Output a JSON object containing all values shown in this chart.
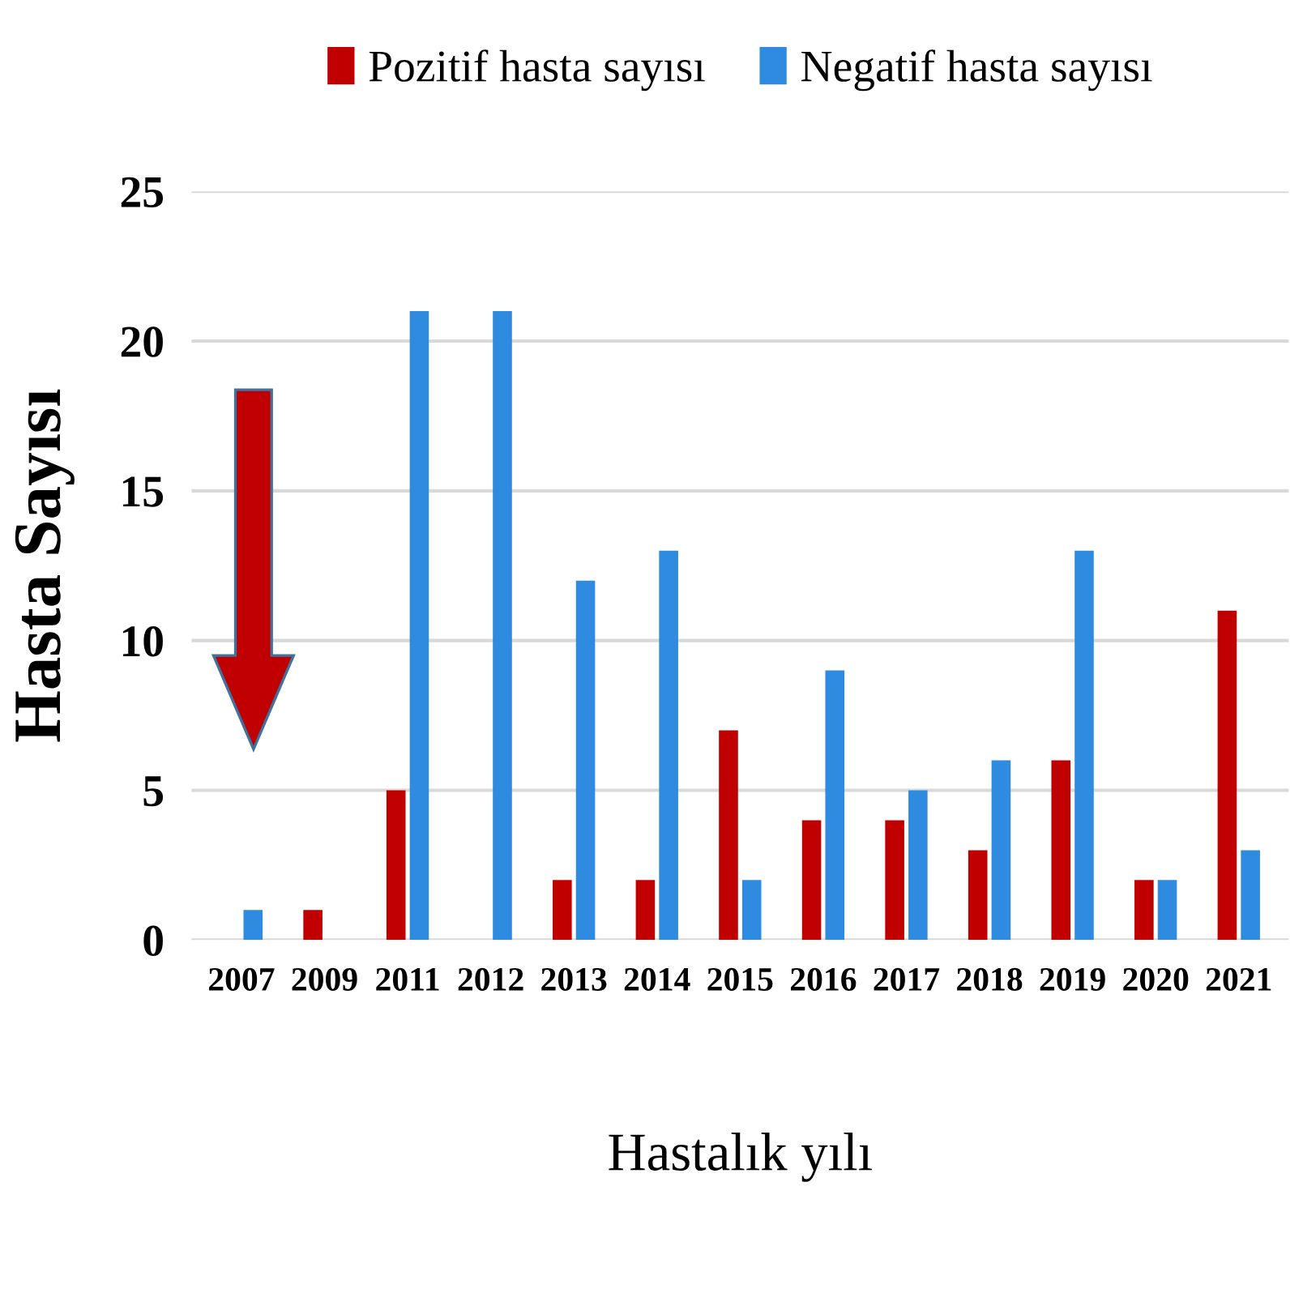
{
  "chart_data": {
    "type": "bar",
    "xlabel": "Hastalık yılı",
    "ylabel": "Hasta Sayısı",
    "categories": [
      "2007",
      "2009",
      "2011",
      "2012",
      "2013",
      "2014",
      "2015",
      "2016",
      "2017",
      "2018",
      "2019",
      "2020",
      "2021"
    ],
    "series": [
      {
        "name": "Pozitif hasta sayısı",
        "color": "#c00000",
        "values": [
          null,
          1,
          5,
          null,
          2,
          2,
          7,
          4,
          4,
          3,
          6,
          2,
          11
        ]
      },
      {
        "name": "Negatif hasta sayısı",
        "color": "#2e8be0",
        "values": [
          1,
          null,
          21,
          21,
          12,
          13,
          2,
          9,
          5,
          6,
          13,
          2,
          3
        ]
      }
    ],
    "ylim": [
      0,
      25
    ],
    "yticks": [
      0,
      5,
      10,
      15,
      20,
      25
    ],
    "grid": "y",
    "legend": "top"
  }
}
